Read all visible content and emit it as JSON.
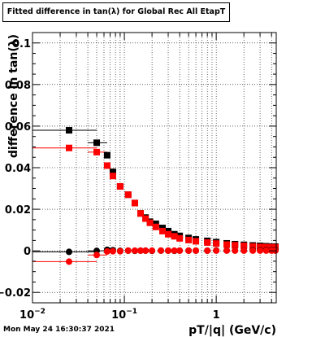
{
  "title": "Fitted difference in tan(λ) for Global Rec All EtapT",
  "datestamp": "Mon May 24 16:30:37 2021",
  "chart_data": {
    "type": "scatter",
    "title": "Fitted difference in tan(λ) for Global Rec All EtapT",
    "xlabel": "pT/|q| (GeV/c)",
    "ylabel": "difference in tan(λ)",
    "xscale": "log",
    "xlim": [
      0.01,
      4.5
    ],
    "ylim": [
      -0.025,
      0.105
    ],
    "x_tick_labels": [
      {
        "value": 0.01,
        "base": "10",
        "exp": "−2"
      },
      {
        "value": 0.1,
        "base": "10",
        "exp": "−1"
      },
      {
        "value": 1,
        "base": "1",
        "exp": ""
      }
    ],
    "y_ticks": [
      -0.02,
      0,
      0.02,
      0.04,
      0.06,
      0.08,
      0.1
    ],
    "y_tick_labels": [
      "−0.02",
      "0",
      "0.02",
      "0.04",
      "0.06",
      "0.08",
      "0.1"
    ],
    "grid": true,
    "series": [
      {
        "color": "#000000",
        "marker": "square",
        "x": [
          0.025,
          0.05,
          0.065,
          0.075,
          0.09,
          0.11,
          0.13,
          0.15,
          0.17,
          0.19,
          0.22,
          0.26,
          0.3,
          0.35,
          0.4,
          0.5,
          0.6,
          0.8,
          1.0,
          1.3,
          1.6,
          2.0,
          2.5,
          3.0,
          3.5,
          4.0,
          4.4
        ],
        "y": [
          0.058,
          0.052,
          0.046,
          0.038,
          0.031,
          0.027,
          0.023,
          0.018,
          0.016,
          0.014,
          0.013,
          0.011,
          0.0095,
          0.008,
          0.0072,
          0.0062,
          0.0055,
          0.0048,
          0.0042,
          0.0036,
          0.0032,
          0.0029,
          0.0026,
          0.0024,
          0.0022,
          0.002,
          0.002
        ],
        "xerr_lo": [
          0.015,
          0.01
        ],
        "xerr_hi": [
          0.025,
          0.015
        ]
      },
      {
        "color": "#ff0000",
        "marker": "square",
        "x": [
          0.025,
          0.05,
          0.065,
          0.075,
          0.09,
          0.11,
          0.13,
          0.15,
          0.17,
          0.19,
          0.22,
          0.26,
          0.3,
          0.35,
          0.4,
          0.5,
          0.6,
          0.8,
          1.0,
          1.3,
          1.6,
          2.0,
          2.5,
          3.0,
          3.5,
          4.0,
          4.4
        ],
        "y": [
          0.0495,
          0.0475,
          0.041,
          0.036,
          0.031,
          0.027,
          0.023,
          0.018,
          0.0155,
          0.0135,
          0.0115,
          0.0095,
          0.008,
          0.007,
          0.006,
          0.0052,
          0.0046,
          0.004,
          0.0035,
          0.003,
          0.0027,
          0.0024,
          0.0021,
          0.0019,
          0.0018,
          0.0017,
          0.0017
        ],
        "xerr_lo": [
          0.015,
          0.01
        ],
        "xerr_hi": [
          0.025,
          0.015
        ]
      },
      {
        "color": "#000000",
        "marker": "circle",
        "x": [
          0.025,
          0.05,
          0.065,
          0.075,
          0.09,
          0.11,
          0.13,
          0.15,
          0.17,
          0.2,
          0.25,
          0.3,
          0.35,
          0.4,
          0.5,
          0.6,
          0.8,
          1.0,
          1.3,
          1.6,
          2.0,
          2.5,
          3.0,
          3.5,
          4.0,
          4.4
        ],
        "y": [
          -0.0005,
          0.0,
          0.0005,
          0.0003,
          0.0,
          0.0001,
          0.0,
          0.0001,
          0.0001,
          0.0,
          0.0001,
          0.0001,
          0.0,
          0.0001,
          0.0001,
          0.0001,
          0.0001,
          0.0002,
          0.0002,
          0.0002,
          0.0002,
          0.0003,
          0.0003,
          0.0003,
          0.0003,
          0.0003
        ],
        "xerr_lo": [
          0.015,
          0.01
        ],
        "xerr_hi": [
          0.025,
          0.015
        ]
      },
      {
        "color": "#ff0000",
        "marker": "circle",
        "x": [
          0.025,
          0.05,
          0.065,
          0.075,
          0.09,
          0.11,
          0.13,
          0.15,
          0.17,
          0.2,
          0.25,
          0.3,
          0.35,
          0.4,
          0.5,
          0.6,
          0.8,
          1.0,
          1.3,
          1.6,
          2.0,
          2.5,
          3.0,
          3.5,
          4.0,
          4.4
        ],
        "y": [
          -0.0052,
          -0.002,
          -0.0003,
          -0.0002,
          -0.0002,
          0.0001,
          0.0001,
          0.0001,
          0.0001,
          0.0001,
          0.0001,
          0.0001,
          0.0001,
          0.0001,
          0.0001,
          0.0001,
          0.0001,
          0.0001,
          0.0001,
          0.0001,
          0.0001,
          0.0001,
          0.0001,
          0.0001,
          0.0001,
          0.0001
        ],
        "xerr_lo": [
          0.015,
          0.01
        ],
        "xerr_hi": [
          0.025,
          0.015
        ]
      }
    ]
  }
}
